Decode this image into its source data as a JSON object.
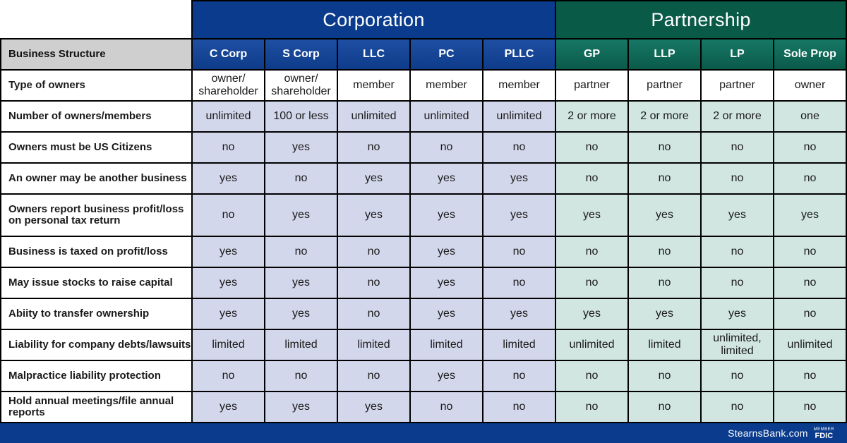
{
  "groups": {
    "corporation": "Corporation",
    "partnership": "Partnership"
  },
  "header": {
    "label": "Business Structure",
    "columns": [
      "C Corp",
      "S Corp",
      "LLC",
      "PC",
      "PLLC",
      "GP",
      "LLP",
      "LP",
      "Sole Prop"
    ]
  },
  "rows": [
    {
      "label": "Type of owners",
      "values": [
        "owner/ shareholder",
        "owner/ shareholder",
        "member",
        "member",
        "member",
        "partner",
        "partner",
        "partner",
        "owner"
      ]
    },
    {
      "label": "Number of owners/members",
      "values": [
        "unlimited",
        "100 or less",
        "unlimited",
        "unlimited",
        "unlimited",
        "2 or more",
        "2 or more",
        "2 or more",
        "one"
      ]
    },
    {
      "label": "Owners must be US Citizens",
      "values": [
        "no",
        "yes",
        "no",
        "no",
        "no",
        "no",
        "no",
        "no",
        "no"
      ]
    },
    {
      "label": "An owner may be another business",
      "values": [
        "yes",
        "no",
        "yes",
        "yes",
        "yes",
        "no",
        "no",
        "no",
        "no"
      ]
    },
    {
      "label": "Owners report business profit/loss on personal tax return",
      "values": [
        "no",
        "yes",
        "yes",
        "yes",
        "yes",
        "yes",
        "yes",
        "yes",
        "yes"
      ]
    },
    {
      "label": "Business is taxed on profit/loss",
      "values": [
        "yes",
        "no",
        "no",
        "yes",
        "no",
        "no",
        "no",
        "no",
        "no"
      ]
    },
    {
      "label": "May issue stocks to raise capital",
      "values": [
        "yes",
        "yes",
        "no",
        "yes",
        "no",
        "no",
        "no",
        "no",
        "no"
      ]
    },
    {
      "label": "Abiity to transfer ownership",
      "values": [
        "yes",
        "yes",
        "no",
        "yes",
        "yes",
        "yes",
        "yes",
        "yes",
        "no"
      ]
    },
    {
      "label": "Liability for company debts/lawsuits",
      "values": [
        "limited",
        "limited",
        "limited",
        "limited",
        "limited",
        "unlimited",
        "limited",
        "unlimited, limited",
        "unlimited"
      ]
    },
    {
      "label": "Malpractice liability protection",
      "values": [
        "no",
        "no",
        "no",
        "yes",
        "no",
        "no",
        "no",
        "no",
        "no"
      ]
    },
    {
      "label": "Hold annual meetings/file annual reports",
      "values": [
        "yes",
        "yes",
        "yes",
        "no",
        "no",
        "no",
        "no",
        "no",
        "no"
      ]
    }
  ],
  "footer": {
    "site": "StearnsBank.com",
    "fdic_member": "MEMBER",
    "fdic": "FDIC"
  },
  "colors": {
    "corporation": "#0b3b8c",
    "partnership": "#0a5a48",
    "corporation_cell": "#d3d7eb",
    "partnership_cell": "#d2e6e1",
    "header_label_bg": "#cfcfcf"
  }
}
